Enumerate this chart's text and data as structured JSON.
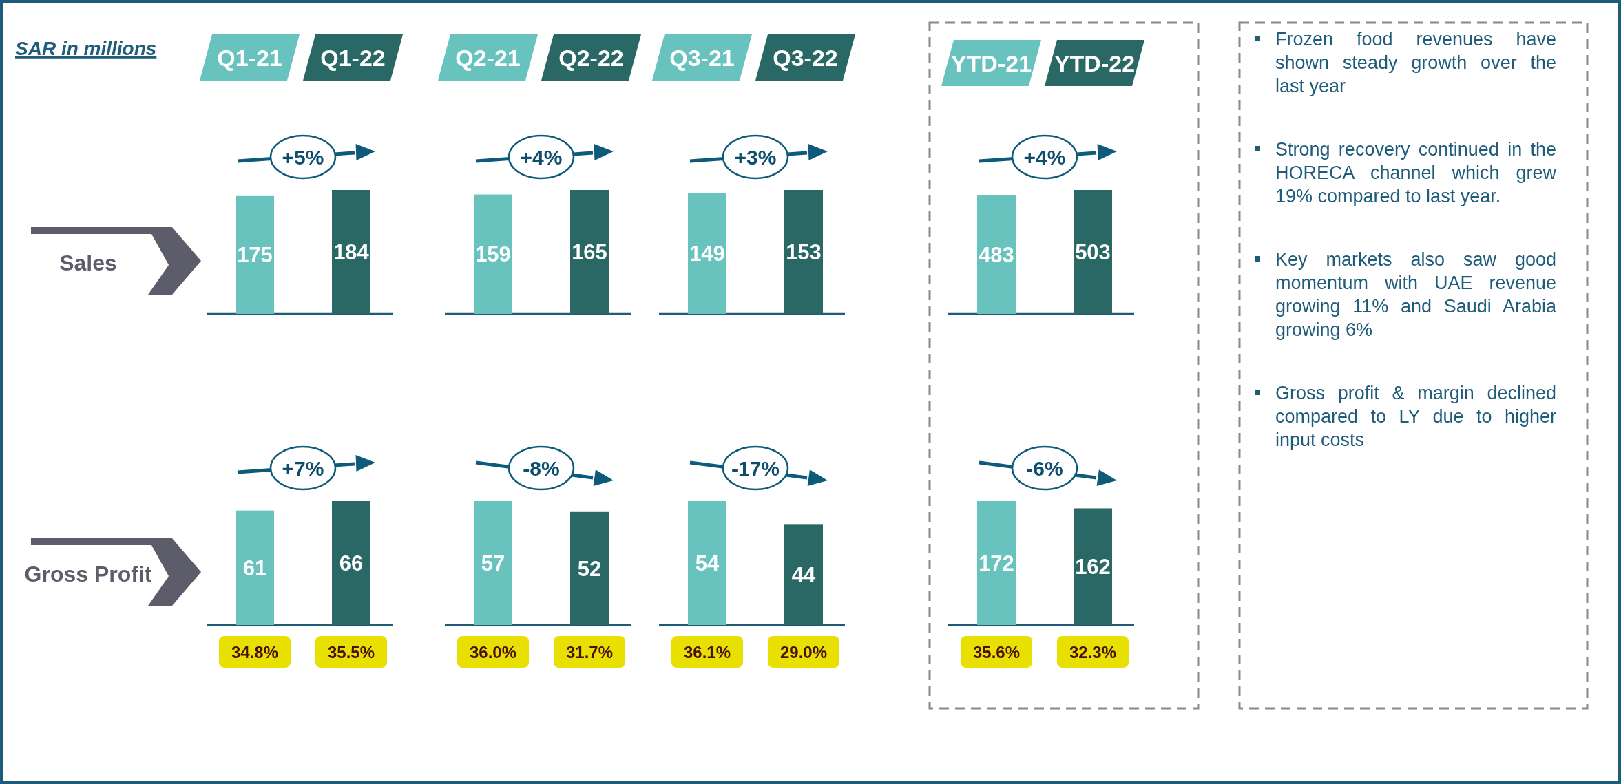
{
  "chart_data": [
    {
      "type": "bar",
      "subtitle": "SAR in millions",
      "ylabel": "Sales",
      "categories": [
        "Q1-21",
        "Q1-22"
      ],
      "values": [
        175,
        184
      ],
      "colors": [
        "#68c3bf",
        "#2a6866"
      ],
      "data_labels": true,
      "annotations": [
        "+5%"
      ]
    },
    {
      "type": "bar",
      "categories": [
        "Q2-21",
        "Q2-22"
      ],
      "values": [
        159,
        165
      ],
      "colors": [
        "#68c3bf",
        "#2a6866"
      ],
      "data_labels": true,
      "annotations": [
        "+4%"
      ]
    },
    {
      "type": "bar",
      "categories": [
        "Q3-21",
        "Q3-22"
      ],
      "values": [
        149,
        153
      ],
      "colors": [
        "#68c3bf",
        "#2a6866"
      ],
      "data_labels": true,
      "annotations": [
        "+3%"
      ]
    },
    {
      "type": "bar",
      "categories": [
        "YTD-21",
        "YTD-22"
      ],
      "values": [
        483,
        503
      ],
      "colors": [
        "#68c3bf",
        "#2a6866"
      ],
      "data_labels": true,
      "annotations": [
        "+4%"
      ]
    },
    {
      "type": "bar",
      "ylabel": "Gross Profit",
      "categories": [
        null,
        null
      ],
      "values": [
        61,
        66
      ],
      "colors": [
        "#68c3bf",
        "#2a6866"
      ],
      "data_labels": true,
      "tick_labels": false,
      "annotations": [
        "+7%",
        "34.8%",
        "35.5%"
      ]
    },
    {
      "type": "bar",
      "categories": [
        null,
        null
      ],
      "values": [
        57,
        52
      ],
      "colors": [
        "#68c3bf",
        "#2a6866"
      ],
      "data_labels": true,
      "tick_labels": false,
      "annotations": [
        "-8%",
        "36.0%",
        "31.7%"
      ]
    },
    {
      "type": "bar",
      "categories": [
        null,
        null
      ],
      "values": [
        54,
        44
      ],
      "colors": [
        "#68c3bf",
        "#2a6866"
      ],
      "data_labels": true,
      "tick_labels": false,
      "annotations": [
        "-17%",
        "36.1%",
        "29.0%"
      ]
    },
    {
      "type": "bar",
      "categories": [
        null,
        null
      ],
      "values": [
        172,
        162
      ],
      "colors": [
        "#68c3bf",
        "#2a6866"
      ],
      "data_labels": true,
      "tick_labels": false,
      "annotations": [
        "-6%",
        "35.6%",
        "32.3%"
      ]
    },
    {
      "type": "other",
      "annotations": [
        "Frozen food revenues have shown steady growth over the last year",
        "Strong recovery continued in the HORECA channel which grew 19% compared to last year.",
        "Key markets also saw good momentum with UAE revenue growing 11% and Saudi Arabia growing 6%",
        "Gross profit & margin declined compared to LY due to higher input costs"
      ]
    }
  ]
}
